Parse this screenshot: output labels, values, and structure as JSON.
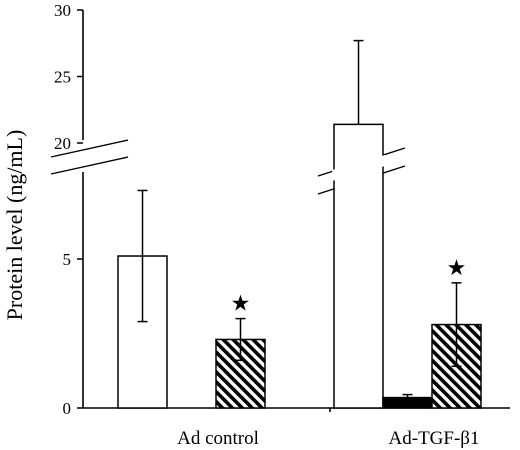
{
  "chart_data": {
    "type": "bar",
    "ylabel": "Protein level (ng/mL)",
    "categories": [
      "Ad control",
      "Ad-TGF-β1"
    ],
    "y_axis": {
      "lower_segment": {
        "range": [
          0,
          8.5
        ],
        "ticks": [
          "0",
          "5"
        ],
        "tick_values": [
          0,
          5
        ]
      },
      "upper_segment": {
        "range": [
          20,
          30
        ],
        "ticks": [
          "20",
          "25",
          "30"
        ],
        "tick_values": [
          20,
          25,
          30
        ]
      },
      "broken_axis": true
    },
    "series": [
      {
        "pattern": "white",
        "values": [
          5.1,
          21.4
        ],
        "errors": [
          2.2,
          6.3
        ]
      },
      {
        "pattern": "black",
        "values": [
          0,
          0.35
        ],
        "errors": [
          0,
          0.1
        ]
      },
      {
        "pattern": "hatched",
        "values": [
          2.3,
          2.8
        ],
        "errors": [
          0.7,
          1.4
        ]
      }
    ],
    "significance_marks": [
      {
        "category": "Ad control",
        "series": 2,
        "symbol": "★"
      },
      {
        "category": "Ad-TGF-β1",
        "series": 2,
        "symbol": "★"
      }
    ],
    "colors": {
      "bar_fill": "#ffffff",
      "bar_stroke": "#000000",
      "solid_fill": "#000000"
    }
  }
}
